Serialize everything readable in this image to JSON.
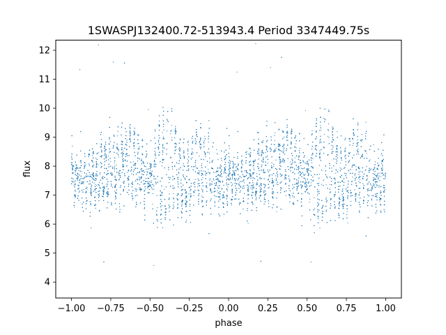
{
  "chart_data": {
    "type": "scatter",
    "title": "1SWASPJ132400.72-513943.4 Period 3347449.75s",
    "xlabel": "phase",
    "ylabel": "flux",
    "xlim": [
      -1.1,
      1.1
    ],
    "ylim": [
      3.45,
      12.35
    ],
    "xticks": [
      -1.0,
      -0.75,
      -0.5,
      -0.25,
      0.0,
      0.25,
      0.5,
      0.75,
      1.0
    ],
    "xtick_labels": [
      "−1.00",
      "−0.75",
      "−0.50",
      "−0.25",
      "0.00",
      "0.25",
      "0.50",
      "0.75",
      "1.00"
    ],
    "yticks": [
      4,
      5,
      6,
      7,
      8,
      9,
      10,
      11,
      12
    ],
    "ytick_labels": [
      "4",
      "5",
      "6",
      "7",
      "8",
      "9",
      "10",
      "11",
      "12"
    ],
    "grid": false,
    "legend": "none",
    "marker_color": "#1f77b4",
    "series": [
      {
        "x_range": [
          -1.0,
          1.0
        ],
        "mirror_period": 1.0,
        "base_flux_profile": {
          "phase": [
            0.0,
            0.05,
            0.1,
            0.15,
            0.2,
            0.25,
            0.3,
            0.35,
            0.4,
            0.45,
            0.5,
            0.55,
            0.6,
            0.65,
            0.7,
            0.75,
            0.8,
            0.85,
            0.9,
            0.95,
            1.0
          ],
          "flux": [
            7.6,
            7.6,
            7.5,
            7.6,
            7.8,
            7.9,
            8.0,
            8.2,
            8.0,
            7.8,
            7.5,
            7.6,
            8.0,
            8.1,
            7.6,
            7.5,
            8.0,
            8.0,
            7.6,
            7.5,
            7.6
          ]
        },
        "variability_amplitude_profile": {
          "phase": [
            0.0,
            0.05,
            0.1,
            0.15,
            0.2,
            0.25,
            0.3,
            0.35,
            0.4,
            0.45,
            0.5,
            0.55,
            0.6,
            0.65,
            0.7,
            0.75,
            0.8,
            0.85,
            0.9,
            0.95,
            1.0
          ],
          "amplitude": [
            0.6,
            0.6,
            0.6,
            0.9,
            1.0,
            1.2,
            1.0,
            0.9,
            1.2,
            0.9,
            0.6,
            1.9,
            2.0,
            1.7,
            1.1,
            1.2,
            1.3,
            1.2,
            0.8,
            0.7,
            0.6
          ]
        }
      }
    ]
  }
}
